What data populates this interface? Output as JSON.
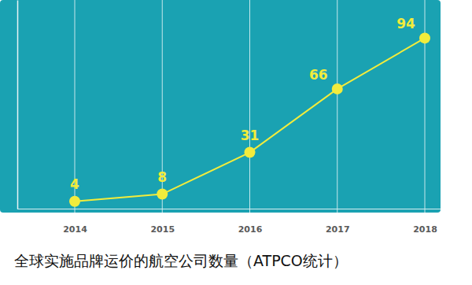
{
  "chart_data": {
    "type": "line",
    "title": "全球实施品牌运价的航空公司数量（ATPCO统计）",
    "categories": [
      "2014",
      "2015",
      "2016",
      "2017",
      "2018"
    ],
    "values": [
      4,
      8,
      31,
      66,
      94
    ],
    "color": "#f2ec3c",
    "marker": "circle",
    "data_labels": true,
    "ylim": [
      0,
      115
    ],
    "tick_labels": "x",
    "grid": true
  }
}
